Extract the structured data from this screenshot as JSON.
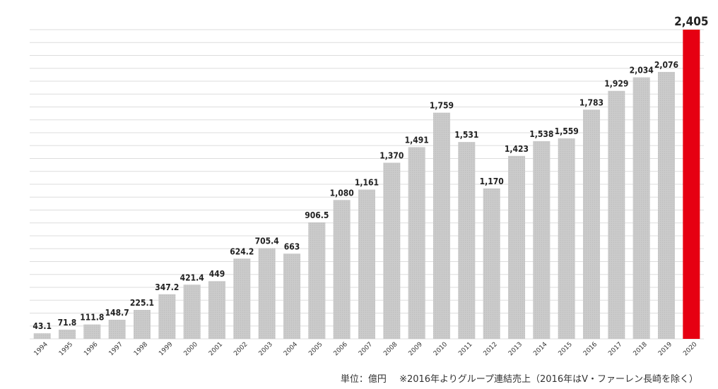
{
  "chart_data": {
    "type": "bar",
    "categories": [
      "1994",
      "1995",
      "1996",
      "1997",
      "1998",
      "1999",
      "2000",
      "2001",
      "2002",
      "2003",
      "2004",
      "2005",
      "2006",
      "2007",
      "2008",
      "2009",
      "2010",
      "2011",
      "2012",
      "2013",
      "2014",
      "2015",
      "2016",
      "2017",
      "2018",
      "2019",
      "2020"
    ],
    "values": [
      43.1,
      71.8,
      111.8,
      148.7,
      225.1,
      347.2,
      421.4,
      449,
      624.2,
      705.4,
      663,
      906.5,
      1080,
      1161,
      1370,
      1491,
      1759,
      1531,
      1170,
      1423,
      1538,
      1559,
      1783,
      1929,
      2034,
      2076,
      2405
    ],
    "value_labels": [
      "43.1",
      "71.8",
      "111.8",
      "148.7",
      "225.1",
      "347.2",
      "421.4",
      "449",
      "624.2",
      "705.4",
      "663",
      "906.5",
      "1,080",
      "1,161",
      "1,370",
      "1,491",
      "1,759",
      "1,531",
      "1,170",
      "1,423",
      "1,538",
      "1,559",
      "1,783",
      "1,929",
      "2,034",
      "2,076",
      "2,405"
    ],
    "highlight_index": 26,
    "ylim": [
      0,
      2405
    ],
    "grid": true,
    "colors": {
      "bar": "#c9c9c9",
      "highlight": "#e60012",
      "grid": "#dddddd",
      "label": "#222222"
    }
  },
  "footnote": {
    "unit": "単位：億円",
    "note": "※2016年よりグループ連結売上（2016年はV・ファーレン長崎を除く）"
  }
}
